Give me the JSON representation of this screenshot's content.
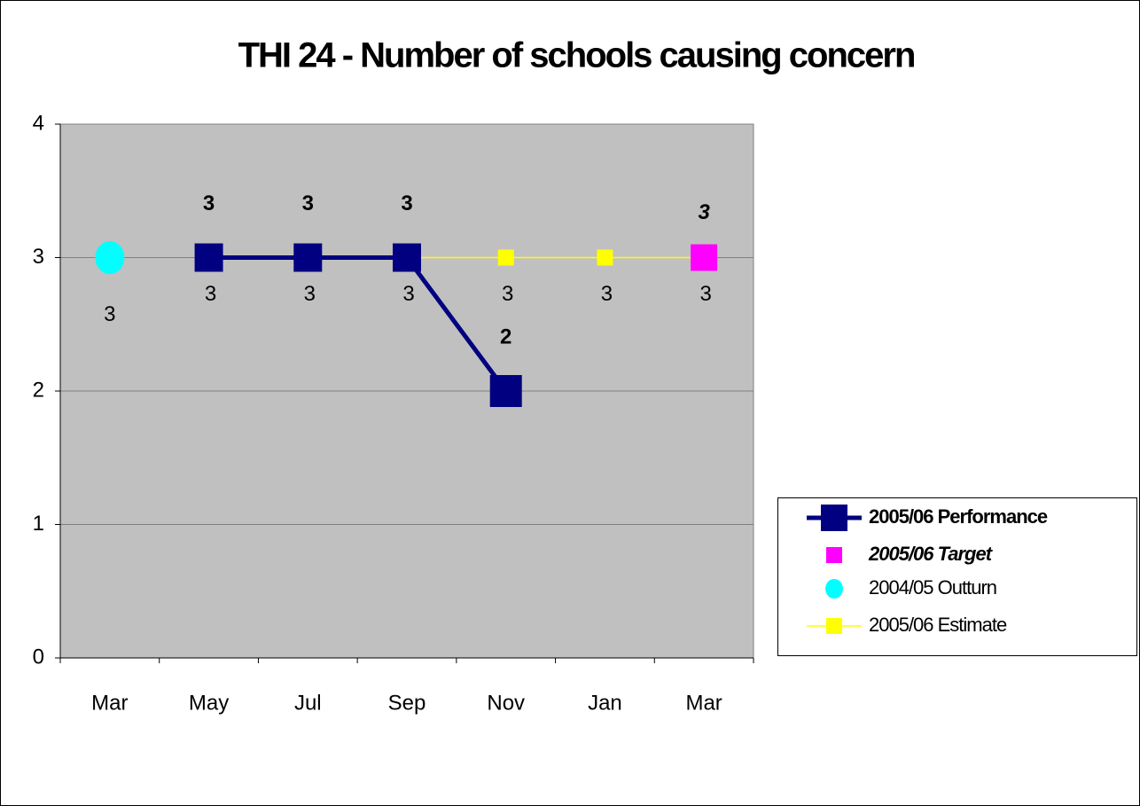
{
  "chart_data": {
    "type": "line",
    "title": "THI 24 - Number of schools causing concern",
    "categories": [
      "Mar",
      "May",
      "Jul",
      "Sep",
      "Nov",
      "Jan",
      "Mar"
    ],
    "ylim": [
      0,
      4
    ],
    "yticks": [
      0,
      1,
      2,
      3,
      4
    ],
    "grid": true,
    "legend": "right",
    "series": [
      {
        "name": "2005/06 Performance",
        "color": "#000080",
        "values": [
          null,
          3,
          3,
          3,
          2,
          null,
          null
        ],
        "line": true,
        "marker": "square",
        "label_position": "above",
        "label_style": "bold"
      },
      {
        "name": "2005/06 Target",
        "color": "#ff00ff",
        "values": [
          null,
          null,
          null,
          null,
          null,
          null,
          3
        ],
        "line": false,
        "marker": "square",
        "label_position": "above",
        "label_style": "bold-italic"
      },
      {
        "name": "2004/05 Outturn",
        "color": "#00ffff",
        "values": [
          3,
          null,
          null,
          null,
          null,
          null,
          null
        ],
        "line": false,
        "marker": "circle",
        "label_position": "below",
        "label_style": "normal"
      },
      {
        "name": "2005/06 Estimate",
        "color": "#ffff00",
        "values": [
          null,
          3,
          3,
          3,
          3,
          3,
          3
        ],
        "line": true,
        "marker": "square",
        "label_position": "below",
        "label_style": "normal"
      }
    ]
  }
}
